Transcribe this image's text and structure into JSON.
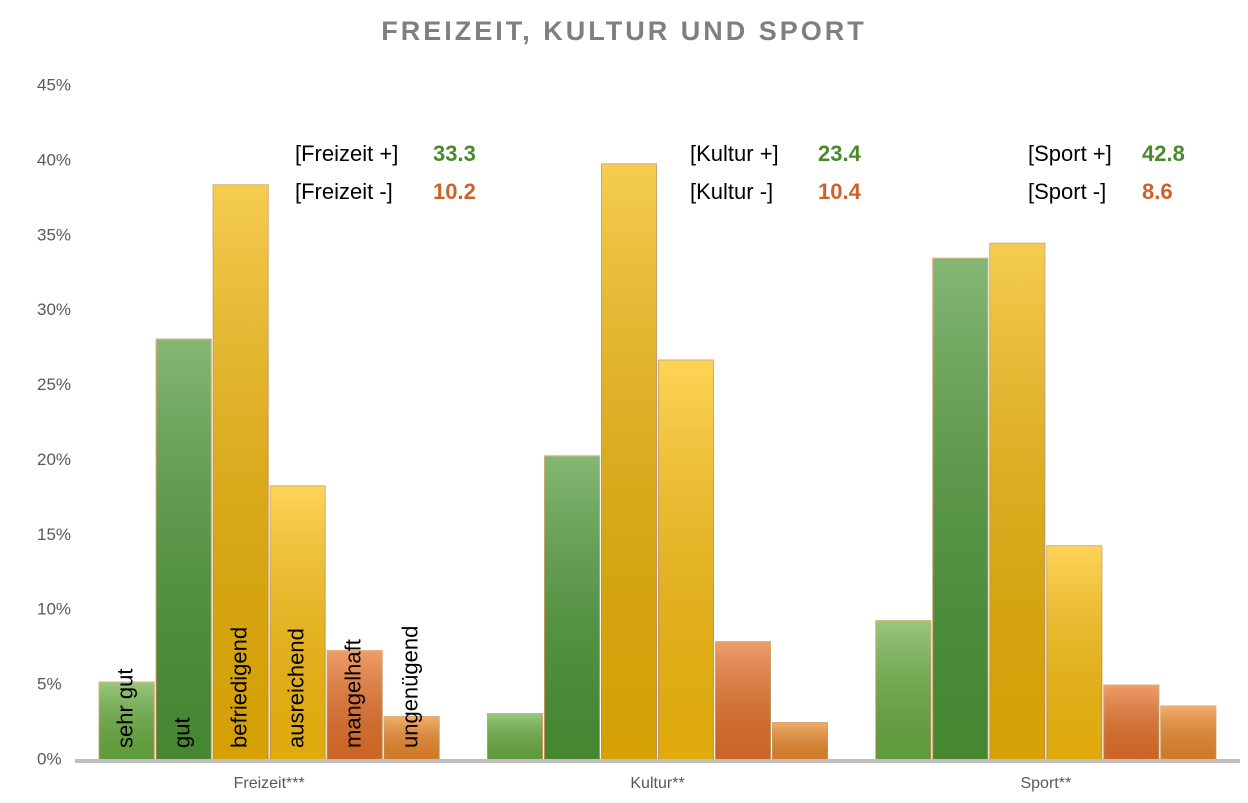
{
  "chart_data": {
    "type": "bar",
    "title": "FREIZEIT, KULTUR UND SPORT",
    "categories": [
      "Freizeit***",
      "Kultur**",
      "Sport**"
    ],
    "series": [
      {
        "name": "sehr gut",
        "color": "#6cb043",
        "values": [
          5.2,
          3.1,
          9.3
        ]
      },
      {
        "name": "gut",
        "color": "#4f9a38",
        "values": [
          28.1,
          20.3,
          33.5
        ]
      },
      {
        "name": "befriedigend",
        "color": "#f2b705",
        "values": [
          38.4,
          39.8,
          34.5
        ]
      },
      {
        "name": "ausreichend",
        "color": "#ffc20e",
        "values": [
          18.3,
          26.7,
          14.3
        ]
      },
      {
        "name": "mangelhaft",
        "color": "#e9732a",
        "values": [
          7.3,
          7.9,
          5.0
        ]
      },
      {
        "name": "ungenügend",
        "color": "#ee8a2c",
        "values": [
          2.9,
          2.5,
          3.6
        ]
      }
    ],
    "ylim": [
      0,
      45
    ],
    "yticks": [
      {
        "value": 0,
        "label": "0%"
      },
      {
        "value": 5,
        "label": "5%"
      },
      {
        "value": 10,
        "label": "10%"
      },
      {
        "value": 15,
        "label": "15%"
      },
      {
        "value": 20,
        "label": "20%"
      },
      {
        "value": 25,
        "label": "25%"
      },
      {
        "value": 30,
        "label": "30%"
      },
      {
        "value": 35,
        "label": "35%"
      },
      {
        "value": 40,
        "label": "40%"
      },
      {
        "value": 45,
        "label": "45%"
      }
    ],
    "grid": false,
    "annotations": [
      [
        {
          "text": "[Freizeit +]",
          "value": 33.3,
          "color": "#4a8a2c"
        },
        {
          "text": "[Freizeit -]",
          "value": 10.2,
          "color": "#d0602a"
        }
      ],
      [
        {
          "text": "[Kultur +]",
          "value": 23.4,
          "color": "#4a8a2c"
        },
        {
          "text": "[Kultur -]",
          "value": 10.4,
          "color": "#d0602a"
        }
      ],
      [
        {
          "text": "[Sport +]",
          "value": 42.8,
          "color": "#4a8a2c"
        },
        {
          "text": "[Sport -]",
          "value": 8.6,
          "color": "#d0602a"
        }
      ]
    ]
  }
}
